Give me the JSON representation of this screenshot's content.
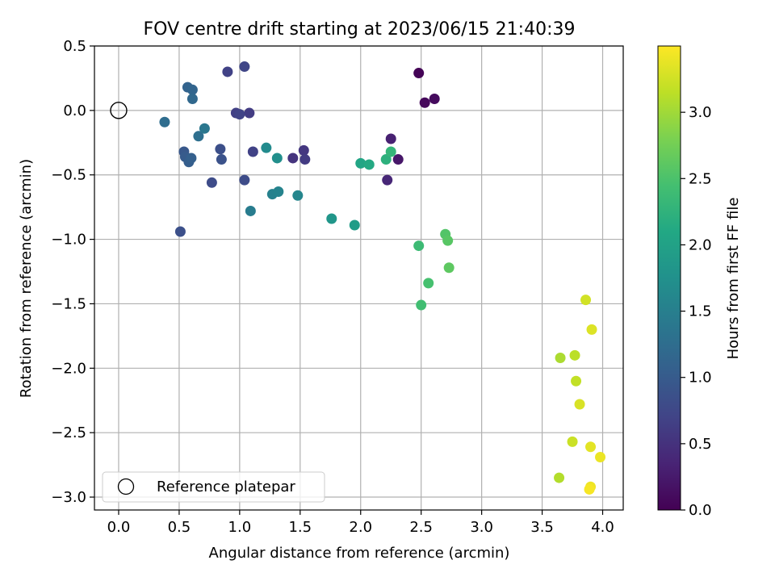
{
  "chart_data": {
    "type": "scatter",
    "title": "FOV centre drift starting at 2023/06/15 21:40:39",
    "xlabel": "Angular distance from reference (arcmin)",
    "ylabel": "Rotation from reference (arcmin)",
    "xlim": [
      -0.2,
      4.17
    ],
    "ylim": [
      -3.1,
      0.5
    ],
    "xticks": [
      0.0,
      0.5,
      1.0,
      1.5,
      2.0,
      2.5,
      3.0,
      3.5,
      4.0
    ],
    "yticks": [
      0.5,
      0.0,
      -0.5,
      -1.0,
      -1.5,
      -2.0,
      -2.5,
      -3.0
    ],
    "grid": true,
    "legend": {
      "placement": "lower-left",
      "entries": [
        "Reference platepar"
      ]
    },
    "reference_point": {
      "x": 0.0,
      "y": 0.0,
      "marker": "open-circle"
    },
    "colormap": "viridis",
    "colorbar": {
      "label": "Hours from first FF file",
      "range": [
        0.0,
        3.5
      ],
      "ticks": [
        0.0,
        0.5,
        1.0,
        1.5,
        2.0,
        2.5,
        3.0
      ]
    },
    "points": [
      {
        "x": 2.48,
        "y": 0.29,
        "t": 0.02
      },
      {
        "x": 2.53,
        "y": 0.06,
        "t": 0.06
      },
      {
        "x": 2.61,
        "y": 0.09,
        "t": 0.1
      },
      {
        "x": 2.31,
        "y": -0.38,
        "t": 0.22
      },
      {
        "x": 2.25,
        "y": -0.22,
        "t": 0.32
      },
      {
        "x": 2.22,
        "y": -0.54,
        "t": 0.38
      },
      {
        "x": 1.44,
        "y": -0.37,
        "t": 0.52
      },
      {
        "x": 1.53,
        "y": -0.31,
        "t": 0.56
      },
      {
        "x": 1.54,
        "y": -0.38,
        "t": 0.6
      },
      {
        "x": 1.08,
        "y": -0.02,
        "t": 0.62
      },
      {
        "x": 0.97,
        "y": -0.02,
        "t": 0.66
      },
      {
        "x": 1.0,
        "y": -0.03,
        "t": 0.7
      },
      {
        "x": 0.9,
        "y": 0.3,
        "t": 0.68
      },
      {
        "x": 1.04,
        "y": 0.34,
        "t": 0.72
      },
      {
        "x": 1.11,
        "y": -0.32,
        "t": 0.68
      },
      {
        "x": 1.04,
        "y": -0.54,
        "t": 0.8
      },
      {
        "x": 0.77,
        "y": -0.56,
        "t": 0.8
      },
      {
        "x": 0.51,
        "y": -0.94,
        "t": 0.86
      },
      {
        "x": 0.84,
        "y": -0.3,
        "t": 0.84
      },
      {
        "x": 0.85,
        "y": -0.38,
        "t": 0.88
      },
      {
        "x": 0.54,
        "y": -0.32,
        "t": 0.96
      },
      {
        "x": 0.55,
        "y": -0.36,
        "t": 1.0
      },
      {
        "x": 0.58,
        "y": -0.4,
        "t": 1.04
      },
      {
        "x": 0.6,
        "y": -0.37,
        "t": 1.06
      },
      {
        "x": 0.57,
        "y": 0.18,
        "t": 1.1
      },
      {
        "x": 0.61,
        "y": 0.16,
        "t": 1.14
      },
      {
        "x": 0.61,
        "y": 0.09,
        "t": 1.18
      },
      {
        "x": 0.38,
        "y": -0.09,
        "t": 1.24
      },
      {
        "x": 0.66,
        "y": -0.2,
        "t": 1.28
      },
      {
        "x": 0.71,
        "y": -0.14,
        "t": 1.38
      },
      {
        "x": 1.09,
        "y": -0.78,
        "t": 1.46
      },
      {
        "x": 1.27,
        "y": -0.65,
        "t": 1.52
      },
      {
        "x": 1.32,
        "y": -0.63,
        "t": 1.56
      },
      {
        "x": 1.48,
        "y": -0.66,
        "t": 1.6
      },
      {
        "x": 1.22,
        "y": -0.29,
        "t": 1.66
      },
      {
        "x": 1.31,
        "y": -0.37,
        "t": 1.72
      },
      {
        "x": 1.76,
        "y": -0.84,
        "t": 1.82
      },
      {
        "x": 1.95,
        "y": -0.89,
        "t": 1.92
      },
      {
        "x": 2.0,
        "y": -0.41,
        "t": 2.06
      },
      {
        "x": 2.07,
        "y": -0.42,
        "t": 2.12
      },
      {
        "x": 2.21,
        "y": -0.38,
        "t": 2.22
      },
      {
        "x": 2.25,
        "y": -0.32,
        "t": 2.3
      },
      {
        "x": 2.48,
        "y": -1.05,
        "t": 2.38
      },
      {
        "x": 2.5,
        "y": -1.51,
        "t": 2.42
      },
      {
        "x": 2.56,
        "y": -1.34,
        "t": 2.46
      },
      {
        "x": 2.7,
        "y": -0.96,
        "t": 2.54
      },
      {
        "x": 2.72,
        "y": -1.01,
        "t": 2.58
      },
      {
        "x": 2.73,
        "y": -1.22,
        "t": 2.62
      },
      {
        "x": 3.65,
        "y": -1.92,
        "t": 3.06
      },
      {
        "x": 3.64,
        "y": -2.85,
        "t": 3.1
      },
      {
        "x": 3.77,
        "y": -1.9,
        "t": 3.14
      },
      {
        "x": 3.78,
        "y": -2.1,
        "t": 3.18
      },
      {
        "x": 3.75,
        "y": -2.57,
        "t": 3.22
      },
      {
        "x": 3.86,
        "y": -1.47,
        "t": 3.26
      },
      {
        "x": 3.81,
        "y": -2.28,
        "t": 3.3
      },
      {
        "x": 3.91,
        "y": -1.7,
        "t": 3.32
      },
      {
        "x": 3.9,
        "y": -2.61,
        "t": 3.36
      },
      {
        "x": 3.98,
        "y": -2.69,
        "t": 3.4
      },
      {
        "x": 3.9,
        "y": -2.92,
        "t": 3.42
      },
      {
        "x": 3.89,
        "y": -2.94,
        "t": 3.46
      }
    ]
  }
}
